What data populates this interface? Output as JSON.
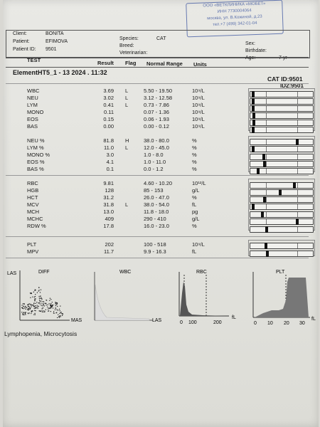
{
  "stamp": {
    "lines": [
      "ООО «ВЕТКЛИНИКА «МОБЕТ»",
      "ИНН 7730004064",
      "москва, ул. В.Кожиной, д.23",
      "тел.+7 (499) 342-01-04"
    ]
  },
  "patient": {
    "client_label": "Client:",
    "client": "BONITA",
    "patient_label": "Patient:",
    "patient": "EFIMOVA",
    "id_label": "Patient ID:",
    "id": "9501",
    "species_label": "Species:",
    "species": "CAT",
    "breed_label": "Breed:",
    "vet_label": "Veterinarian:",
    "sex_label": "Sex:",
    "birth_label": "Birthdate:",
    "age_label": "Age:",
    "age": "7 yr"
  },
  "table_header": {
    "test": "TEST",
    "result": "Result",
    "flag": "Flag",
    "range": "Normal Range",
    "units": "Units"
  },
  "device": {
    "title": "ElementHT5_1 - 13  2024 . 11:32",
    "cat_id": "CAT  ID:9501",
    "id2": "ID2:9501"
  },
  "rows": [
    {
      "name": "WBC",
      "result": "3.69",
      "flag": "L",
      "range": "5.50 - 19.50",
      "unit": "10⁹/L",
      "level": 0.02
    },
    {
      "name": "NEU",
      "result": "3.02",
      "flag": "L",
      "range": "3.12 - 12.58",
      "unit": "10⁹/L",
      "level": 0.02
    },
    {
      "name": "LYM",
      "result": "0.41",
      "flag": "L",
      "range": "0.73 - 7.86",
      "unit": "10⁹/L",
      "level": 0.02
    },
    {
      "name": "MONO",
      "result": "0.11",
      "flag": "",
      "range": "0.07 - 1.36",
      "unit": "10⁹/L",
      "level": 0.03
    },
    {
      "name": "EOS",
      "result": "0.15",
      "flag": "",
      "range": "0.06 - 1.93",
      "unit": "10⁹/L",
      "level": 0.04
    },
    {
      "name": "BAS",
      "result": "0.00",
      "flag": "",
      "range": "0.00 - 0.12",
      "unit": "10⁹/L",
      "level": 0.02
    },
    {
      "name": "NEU %",
      "result": "81.8",
      "flag": "H",
      "range": "38.0 - 80.0",
      "unit": "%",
      "level": 0.76
    },
    {
      "name": "LYM %",
      "result": "11.0",
      "flag": "L",
      "range": "12.0 - 45.0",
      "unit": "%",
      "level": 0.02
    },
    {
      "name": "MONO %",
      "result": "3.0",
      "flag": "",
      "range": "1.0 - 8.0",
      "unit": "%",
      "level": 0.2
    },
    {
      "name": "EOS %",
      "result": "4.1",
      "flag": "",
      "range": "1.0 - 11.0",
      "unit": "%",
      "level": 0.22
    },
    {
      "name": "BAS %",
      "result": "0.1",
      "flag": "",
      "range": "0.0 - 1.2",
      "unit": "%",
      "level": 0.11
    },
    {
      "name": "RBC",
      "result": "9.81",
      "flag": "",
      "range": "4.60 - 10.20",
      "unit": "10¹²/L",
      "level": 0.72
    },
    {
      "name": "HGB",
      "result": "128",
      "flag": "",
      "range": "85 - 153",
      "unit": "g/L",
      "level": 0.48
    },
    {
      "name": "HCT",
      "result": "31.2",
      "flag": "",
      "range": "26.0 - 47.0",
      "unit": "%",
      "level": 0.22
    },
    {
      "name": "MCV",
      "result": "31.8",
      "flag": "L",
      "range": "38.0 - 54.0",
      "unit": "fL",
      "level": 0.02
    },
    {
      "name": "MCH",
      "result": "13.0",
      "flag": "",
      "range": "11.8 - 18.0",
      "unit": "pg",
      "level": 0.18
    },
    {
      "name": "MCHC",
      "result": "409",
      "flag": "",
      "range": "290 - 410",
      "unit": "g/L",
      "level": 0.76
    },
    {
      "name": "RDW %",
      "result": "17.8",
      "flag": "",
      "range": "16.0 - 23.0",
      "unit": "%",
      "level": 0.25
    },
    {
      "name": "PLT",
      "result": "202",
      "flag": "",
      "range": "100 - 518",
      "unit": "10⁹/L",
      "level": 0.24
    },
    {
      "name": "MPV",
      "result": "11.7",
      "flag": "",
      "range": "9.9 - 16.3",
      "unit": "fL",
      "level": 0.26
    }
  ],
  "histograms": {
    "diff_title": "DIFF",
    "las": "LAS",
    "mas": "MAS",
    "wbc_title": "WBC",
    "wbc_las": "LAS",
    "rbc_title": "RBC",
    "rbc_ticks": [
      "0",
      "100",
      "200"
    ],
    "rbc_unit": "fL",
    "plt_title": "PLT",
    "plt_ticks": [
      "0",
      "10",
      "20",
      "30"
    ],
    "plt_unit": "fL"
  },
  "comment": "Lymphopenia, Microcytosis"
}
